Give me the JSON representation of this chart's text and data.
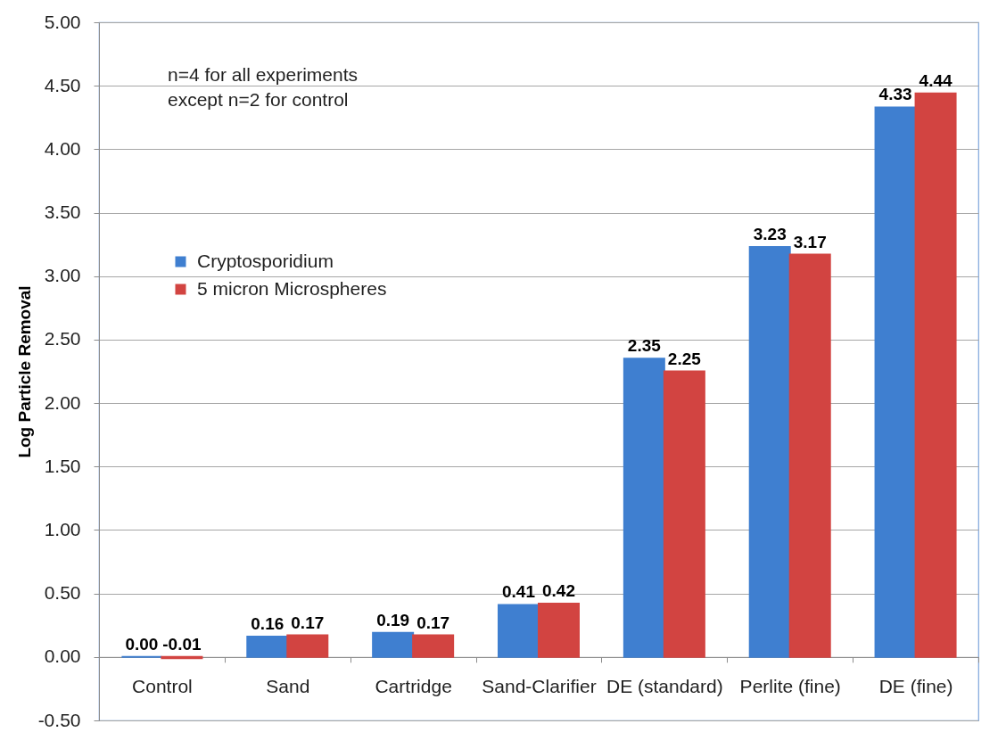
{
  "chart_data": {
    "type": "bar",
    "ylabel": "Log Particle Removal",
    "annotations": [
      "n=4 for all experiments\nexcept n=2 for control"
    ],
    "categories": [
      "Control",
      "Sand",
      "Cartridge",
      "Sand-Clarifier",
      "DE (standard)",
      "Perlite (fine)",
      "DE (fine)"
    ],
    "series": [
      {
        "name": "Cryptosporidium",
        "color": "#3f7fd0",
        "values": [
          0.0,
          0.16,
          0.19,
          0.41,
          2.35,
          3.23,
          4.33
        ],
        "value_labels": [
          "0.00",
          "0.16",
          "0.19",
          "0.41",
          "2.35",
          "3.23",
          "4.33"
        ]
      },
      {
        "name": "5 micron Microspheres",
        "color": "#d24441",
        "values": [
          -0.01,
          0.17,
          0.17,
          0.42,
          2.25,
          3.17,
          4.44
        ],
        "value_labels": [
          "-0.01",
          "0.17",
          "0.17",
          "0.42",
          "2.25",
          "3.17",
          "4.44"
        ]
      }
    ],
    "ylim": [
      -0.5,
      5
    ],
    "yticks": [
      {
        "value": -0.5,
        "label": "-0.50"
      },
      {
        "value": 0,
        "label": "0.00"
      },
      {
        "value": 0.5,
        "label": "0.50"
      },
      {
        "value": 1,
        "label": "1.00"
      },
      {
        "value": 1.5,
        "label": "1.50"
      },
      {
        "value": 2,
        "label": "2.00"
      },
      {
        "value": 2.5,
        "label": "2.50"
      },
      {
        "value": 3,
        "label": "3.00"
      },
      {
        "value": 3.5,
        "label": "3.50"
      },
      {
        "value": 4,
        "label": "4.00"
      },
      {
        "value": 4.5,
        "label": "4.50"
      },
      {
        "value": 5,
        "label": "5.00"
      }
    ],
    "grid": "y",
    "legend": "left"
  }
}
